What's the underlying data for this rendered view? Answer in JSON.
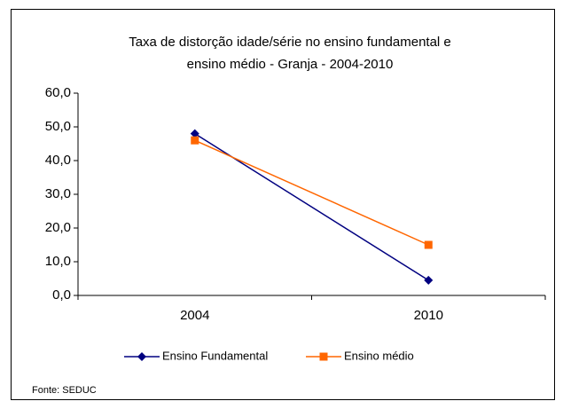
{
  "chart_data": {
    "type": "line",
    "title": [
      "Taxa de distorção idade/série no ensino fundamental e",
      "ensino médio - Granja -  2004-2010"
    ],
    "categories": [
      "2004",
      "2010"
    ],
    "series": [
      {
        "name": "Ensino Fundamental",
        "color": "#000080",
        "marker": "diamond",
        "values": [
          48.0,
          4.5
        ]
      },
      {
        "name": "Ensino médio",
        "color": "#FF6600",
        "marker": "square",
        "values": [
          46.0,
          15.0
        ]
      }
    ],
    "ylim": [
      0,
      60
    ],
    "yticks": [
      {
        "value": 0,
        "label": "0,0"
      },
      {
        "value": 10,
        "label": "10,0"
      },
      {
        "value": 20,
        "label": "20,0"
      },
      {
        "value": 30,
        "label": "30,0"
      },
      {
        "value": 40,
        "label": "40,0"
      },
      {
        "value": 50,
        "label": "50,0"
      },
      {
        "value": 60,
        "label": "60,0"
      }
    ],
    "grid": false,
    "legend": "bottom",
    "source": "Fonte: SEDUC"
  }
}
